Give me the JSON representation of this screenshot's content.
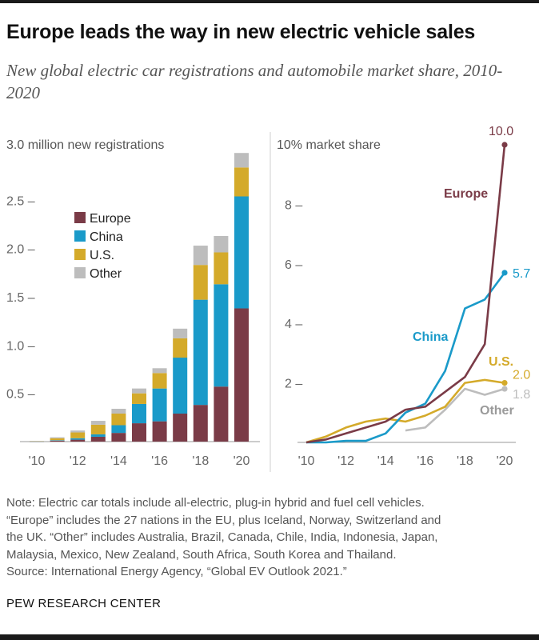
{
  "colors": {
    "europe": "#7a3b47",
    "china": "#1a9ac9",
    "us": "#d4aa2a",
    "other": "#bdbdbd"
  },
  "title": "Europe leads the way in new electric vehicle sales",
  "subtitle": "New global electric car registrations and automobile market share, 2010-2020",
  "notes": {
    "line1": "Note: Electric car totals include all-electric, plug-in hybrid and fuel cell vehicles.",
    "line2": "“Europe” includes the 27 nations in the EU, plus Iceland, Norway, Switzerland and",
    "line3": "the UK. “Other” includes Australia, Brazil, Canada, Chile, India, Indonesia, Japan,",
    "line4": "Malaysia, Mexico, New Zealand, South Africa, South Korea and Thailand.",
    "line5": "Source: International Energy Agency, “Global EV Outlook 2021.”"
  },
  "source_org": "PEW RESEARCH CENTER",
  "chart_data": [
    {
      "type": "bar",
      "stacked": true,
      "title": "",
      "ylabel": "3.0 million new registrations",
      "ylim": [
        0,
        3.0
      ],
      "y_ticks": [
        "0.5",
        "1.0",
        "1.5",
        "2.0",
        "2.5"
      ],
      "x_tick_labels": [
        "'10",
        "'12",
        "'14",
        "'16",
        "'18",
        "'20"
      ],
      "x_tick_years": [
        2010,
        2012,
        2014,
        2016,
        2018,
        2020
      ],
      "categories": [
        2010,
        2011,
        2012,
        2013,
        2014,
        2015,
        2016,
        2017,
        2018,
        2019,
        2020
      ],
      "legend": {
        "position": "top-left"
      },
      "series": [
        {
          "name": "Europe",
          "color_key": "europe",
          "values": [
            0.002,
            0.01,
            0.02,
            0.05,
            0.09,
            0.19,
            0.21,
            0.29,
            0.38,
            0.57,
            1.38
          ]
        },
        {
          "name": "China",
          "color_key": "china",
          "values": [
            0.001,
            0.005,
            0.015,
            0.025,
            0.08,
            0.2,
            0.34,
            0.58,
            1.09,
            1.06,
            1.16
          ]
        },
        {
          "name": "U.S.",
          "color_key": "us",
          "values": [
            0.002,
            0.02,
            0.06,
            0.1,
            0.12,
            0.11,
            0.16,
            0.2,
            0.36,
            0.33,
            0.3
          ]
        },
        {
          "name": "Other",
          "color_key": "other",
          "values": [
            0.001,
            0.01,
            0.02,
            0.04,
            0.05,
            0.05,
            0.05,
            0.1,
            0.2,
            0.17,
            0.15
          ]
        }
      ]
    },
    {
      "type": "line",
      "title": "",
      "ylabel": "10% market share",
      "ylim": [
        0,
        10
      ],
      "y_ticks": [
        "2",
        "4",
        "6",
        "8"
      ],
      "x_tick_labels": [
        "'10",
        "'12",
        "'14",
        "'16",
        "'18",
        "'20"
      ],
      "x_tick_years": [
        2010,
        2012,
        2014,
        2016,
        2018,
        2020
      ],
      "series": [
        {
          "name": "Europe",
          "color_key": "europe",
          "x": [
            2010,
            2011,
            2012,
            2013,
            2014,
            2015,
            2016,
            2017,
            2018,
            2019,
            2020
          ],
          "values": [
            0.0,
            0.1,
            0.3,
            0.5,
            0.7,
            1.1,
            1.2,
            1.7,
            2.2,
            3.3,
            10.0
          ],
          "end_label": "10.0"
        },
        {
          "name": "China",
          "color_key": "china",
          "x": [
            2010,
            2011,
            2012,
            2013,
            2014,
            2015,
            2016,
            2017,
            2018,
            2019,
            2020
          ],
          "values": [
            0.0,
            0.0,
            0.05,
            0.05,
            0.3,
            1.0,
            1.3,
            2.4,
            4.5,
            4.8,
            5.7
          ],
          "end_label": "5.7"
        },
        {
          "name": "U.S.",
          "color_key": "us",
          "x": [
            2010,
            2011,
            2012,
            2013,
            2014,
            2015,
            2016,
            2017,
            2018,
            2019,
            2020
          ],
          "values": [
            0.0,
            0.2,
            0.5,
            0.7,
            0.8,
            0.7,
            0.9,
            1.2,
            2.0,
            2.1,
            2.0
          ],
          "end_label": "2.0"
        },
        {
          "name": "Other",
          "color_key": "other",
          "x": [
            2015,
            2016,
            2017,
            2018,
            2019,
            2020
          ],
          "values": [
            0.4,
            0.5,
            1.1,
            1.8,
            1.6,
            1.8
          ],
          "end_label": "1.8"
        }
      ]
    }
  ]
}
